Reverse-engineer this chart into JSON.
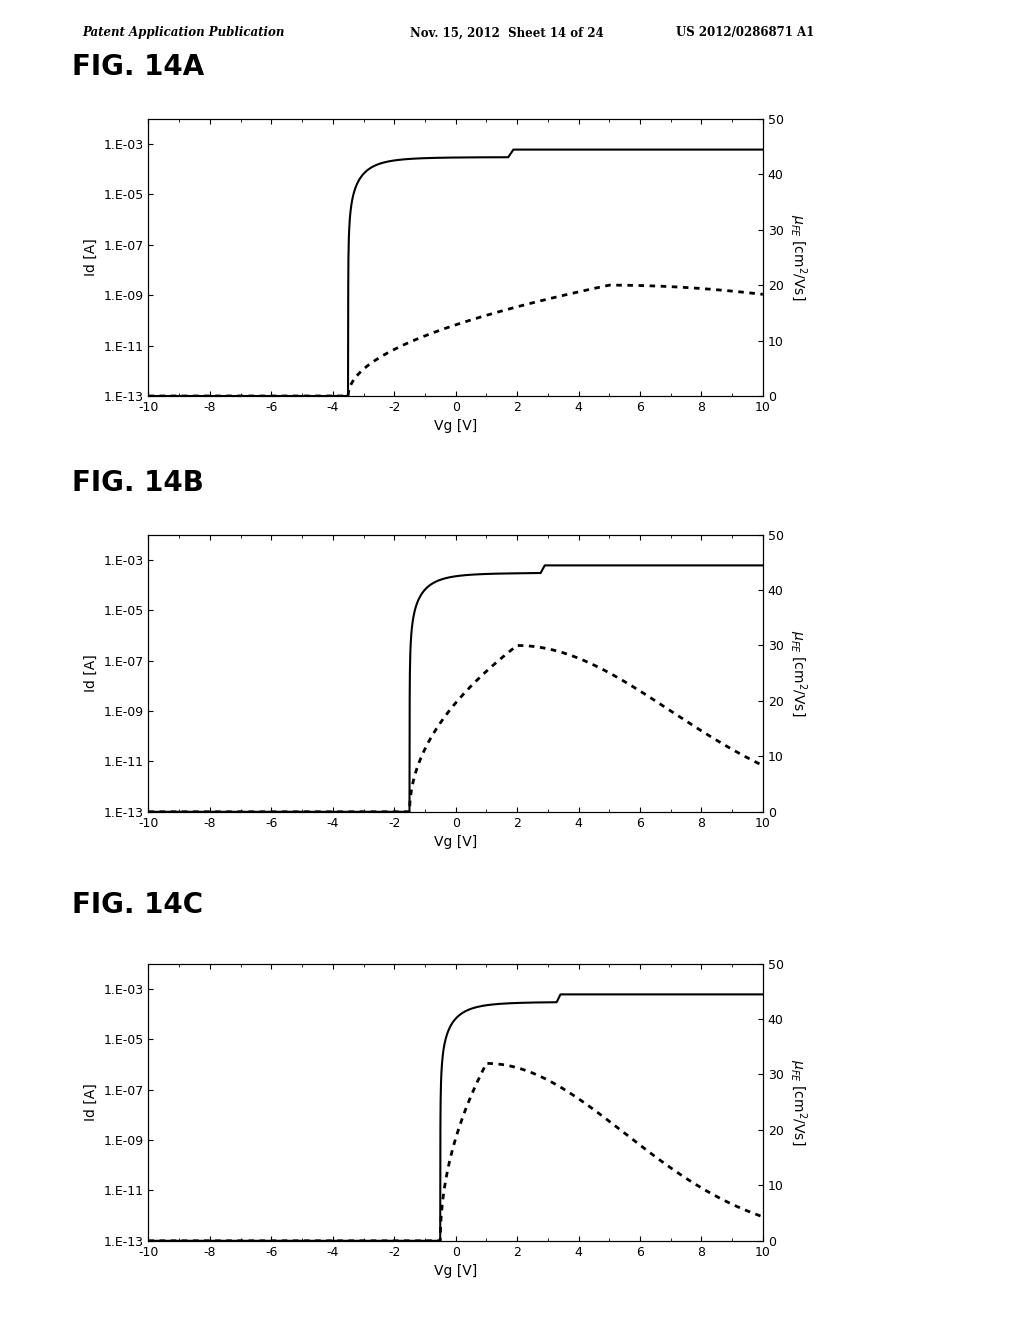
{
  "header_left": "Patent Application Publication",
  "header_mid": "Nov. 15, 2012  Sheet 14 of 24",
  "header_right": "US 2012/0286871 A1",
  "figures": [
    {
      "title": "FIG. 14A",
      "vth": -3.5,
      "SS": 0.55,
      "Id_sat": 0.0003,
      "mu_peak": 20,
      "mu_peak_vg": 5.0,
      "mu_rise": 5.0,
      "mu_fall": 12.0
    },
    {
      "title": "FIG. 14B",
      "vth": -1.5,
      "SS": 0.45,
      "Id_sat": 0.0003,
      "mu_peak": 30,
      "mu_peak_vg": 2.0,
      "mu_rise": 3.0,
      "mu_fall": 5.0
    },
    {
      "title": "FIG. 14C",
      "vth": -0.5,
      "SS": 0.4,
      "Id_sat": 0.0003,
      "mu_peak": 32,
      "mu_peak_vg": 1.0,
      "mu_rise": 2.0,
      "mu_fall": 4.5
    }
  ],
  "xlabel": "Vg [V]",
  "ylabel_left": "Id [A]",
  "xmin": -10,
  "xmax": 10,
  "ylog_min": 1e-13,
  "ylog_max": 0.001,
  "yright_min": 0,
  "yright_max": 50,
  "bg_color": "#ffffff",
  "line_color": "#000000",
  "ytick_labels": [
    "1.E-13",
    "1.E-11",
    "1.E-09",
    "1.E-07",
    "1.E-05",
    "1.E-03"
  ],
  "ytick_vals": [
    1e-13,
    1e-11,
    1e-09,
    1e-07,
    1e-05,
    0.001
  ],
  "xtick_vals": [
    -10,
    -8,
    -6,
    -4,
    -2,
    0,
    2,
    4,
    6,
    8,
    10
  ],
  "xtick_labels": [
    "-10",
    "-8",
    "-6",
    "-4",
    "-2",
    "0",
    "2",
    "4",
    "6",
    "8",
    "10"
  ],
  "right_ytick_vals": [
    0,
    10,
    20,
    30,
    40,
    50
  ],
  "right_ytick_labels": [
    "0",
    "10",
    "20",
    "30",
    "40",
    "50"
  ]
}
